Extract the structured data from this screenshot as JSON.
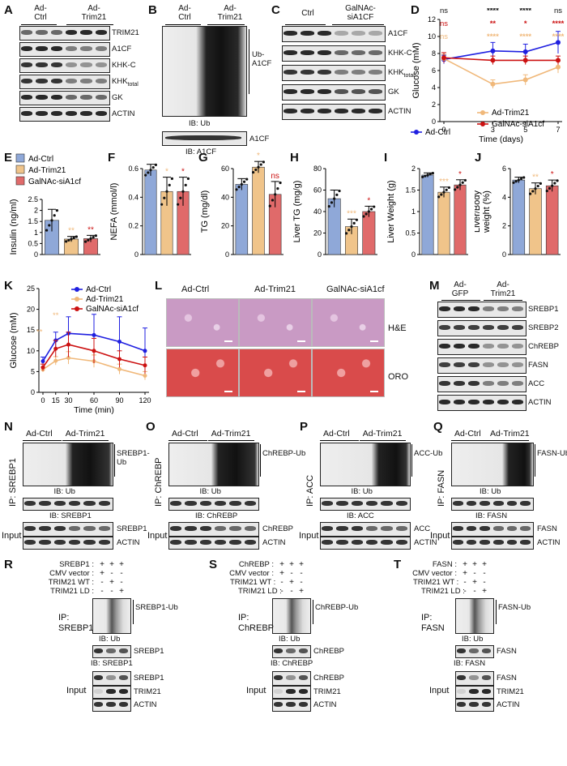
{
  "panels": {
    "A": {
      "letter": "A",
      "groups": [
        "Ad-\nCtrl",
        "Ad-\nTrim21"
      ],
      "rows": [
        "TRIM21",
        "A1CF",
        "KHK-C",
        "KHK",
        "GK",
        "ACTIN"
      ],
      "khk_sub": "total"
    },
    "B": {
      "letter": "B",
      "groups": [
        "Ad-\nCtrl",
        "Ad-\nTrim21"
      ],
      "smear_label": "Ub-\nA1CF",
      "ib1": "IB: Ub",
      "row2": "A1CF",
      "ib2": "IB: A1CF"
    },
    "C": {
      "letter": "C",
      "groups": [
        "Ctrl",
        "GalNAc-\nsiA1CF"
      ],
      "rows": [
        "A1CF",
        "KHK-C",
        "KHK",
        "GK",
        "ACTIN"
      ],
      "khk_sub": "total"
    },
    "D": {
      "letter": "D"
    },
    "E": {
      "letter": "E"
    },
    "F": {
      "letter": "F"
    },
    "G": {
      "letter": "G"
    },
    "H": {
      "letter": "H"
    },
    "I": {
      "letter": "I"
    },
    "J": {
      "letter": "J"
    },
    "K": {
      "letter": "K"
    },
    "L": {
      "letter": "L",
      "cols": [
        "Ad-Ctrl",
        "Ad-Trim21",
        "GalNAc-siA1cf"
      ],
      "rows": [
        "H&E",
        "ORO"
      ],
      "he_color": "#c99ac4",
      "oro_color": "#d94b4b"
    },
    "M": {
      "letter": "M",
      "groups": [
        "Ad-\nGFP",
        "Ad-\nTrim21"
      ],
      "rows": [
        "SREBP1",
        "SREBP2",
        "ChREBP",
        "FASN",
        "ACC",
        "ACTIN"
      ]
    },
    "N": {
      "letter": "N",
      "groups": [
        "Ad-Ctrl",
        "Ad-Trim21"
      ],
      "ip": "IP: SREBP1",
      "smear": "SREBP1-\nUb",
      "ib1": "IB: Ub",
      "ib2": "IB: SREBP1",
      "input": "Input",
      "in1": "SREBP1",
      "in2": "ACTIN"
    },
    "O": {
      "letter": "O",
      "groups": [
        "Ad-Ctrl",
        "Ad-Trim21"
      ],
      "ip": "IP: ChREBP",
      "smear": "ChREBP-Ub",
      "ib1": "IB: Ub",
      "ib2": "IB: ChREBP",
      "input": "Input",
      "in1": "ChREBP",
      "in2": "ACTIN"
    },
    "P": {
      "letter": "P",
      "groups": [
        "Ad-Ctrl",
        "Ad-Trim21"
      ],
      "ip": "IP: ACC",
      "smear": "ACC-Ub",
      "ib1": "IB: Ub",
      "ib2": "IB: ACC",
      "input": "Input",
      "in1": "ACC",
      "in2": "ACTIN"
    },
    "Q": {
      "letter": "Q",
      "groups": [
        "Ad-Ctrl",
        "Ad-Trim21"
      ],
      "ip": "IP: FASN",
      "smear": "FASN-Ub",
      "ib1": "IB: Ub",
      "ib2": "IB: FASN",
      "input": "Input",
      "in1": "FASN",
      "in2": "ACTIN"
    },
    "R": {
      "letter": "R",
      "conds": [
        "SREBP1 :",
        "CMV vector :",
        "TRIM21 WT :",
        "TRIM21 LD :"
      ],
      "signs": [
        [
          "+",
          "+",
          "+"
        ],
        [
          "+",
          "-",
          "-"
        ],
        [
          "-",
          "+",
          "-"
        ],
        [
          "-",
          "-",
          "+"
        ]
      ],
      "ip": "IP:\nSREBP1",
      "smear": "SREBP1-Ub",
      "ib1": "IB: Ub",
      "r2": "SREBP1",
      "ib2": "IB: SREBP1",
      "input": "Input",
      "in1": "SREBP1",
      "in2": "TRIM21",
      "in3": "ACTIN"
    },
    "S": {
      "letter": "S",
      "conds": [
        "ChREBP :",
        "CMV vector :",
        "TRIM21 WT :",
        "TRIM21 LD :"
      ],
      "signs": [
        [
          "+",
          "+",
          "+"
        ],
        [
          "+",
          "-",
          "-"
        ],
        [
          "-",
          "+",
          "-"
        ],
        [
          "-",
          "-",
          "+"
        ]
      ],
      "ip": "IP:\nChREBP",
      "smear": "ChREBP-Ub",
      "ib1": "IB: Ub",
      "r2": "ChREBP",
      "ib2": "IB: ChREBP",
      "input": "Input",
      "in1": "ChREBP",
      "in2": "TRIM21",
      "in3": "ACTIN"
    },
    "T": {
      "letter": "T",
      "conds": [
        "FASN :",
        "CMV vector :",
        "TRIM21 WT :",
        "TRIM21 LD :"
      ],
      "signs": [
        [
          "+",
          "+",
          "+"
        ],
        [
          "+",
          "-",
          "-"
        ],
        [
          "-",
          "+",
          "-"
        ],
        [
          "-",
          "-",
          "+"
        ]
      ],
      "ip": "IP:\nFASN",
      "smear": "FASN-Ub",
      "ib1": "IB: Ub",
      "r2": "FASN",
      "ib2": "IB: FASN",
      "input": "Input",
      "in1": "FASN",
      "in2": "TRIM21",
      "in3": "ACTIN"
    }
  },
  "colors": {
    "ctrl": "#8fa8d8",
    "trim21": "#f0c48a",
    "sia1cf": "#e06a6a",
    "blue": "#1f1fe0",
    "orange": "#f0b87a",
    "red": "#cc1111"
  },
  "chart_data": [
    {
      "panel": "D",
      "type": "line",
      "xlabel": "Time (days)",
      "ylabel": "Glucose (mM)",
      "x": [
        0,
        3,
        5,
        7
      ],
      "ylim": [
        0,
        12
      ],
      "yticks": [
        0,
        2,
        4,
        6,
        8,
        10,
        12
      ],
      "series": [
        {
          "name": "Ad-Ctrl",
          "values": [
            7.3,
            8.3,
            8.2,
            9.3
          ],
          "err": [
            0.5,
            1.0,
            0.9,
            1.3
          ]
        },
        {
          "name": "Ad-Trim21",
          "values": [
            7.4,
            4.4,
            4.9,
            6.4
          ],
          "err": [
            0.5,
            0.5,
            0.6,
            0.7
          ]
        },
        {
          "name": "GalNAc-siA1cf",
          "values": [
            7.5,
            7.2,
            7.2,
            7.2
          ],
          "err": [
            0.6,
            0.5,
            0.5,
            0.5
          ]
        }
      ],
      "annotations": [
        [
          "ns",
          "****",
          "****",
          "ns"
        ],
        [
          "ns",
          "**",
          "*",
          "****"
        ],
        [
          "ns",
          "****",
          "****",
          "****"
        ]
      ]
    },
    {
      "panel": "E",
      "type": "bar",
      "ylabel": "Insulin (ng/ml)",
      "ylim": [
        0,
        2.5
      ],
      "yticks": [
        0,
        0.5,
        1.0,
        1.5,
        2.0,
        2.5
      ],
      "legend": [
        "Ad-Ctrl",
        "Ad-Trim21",
        "GalNAc-siA1cf"
      ],
      "values": [
        1.55,
        0.7,
        0.72
      ],
      "err": [
        0.5,
        0.12,
        0.15
      ],
      "sig": [
        "",
        "**",
        "**"
      ]
    },
    {
      "panel": "F",
      "type": "bar",
      "ylabel": "NEFA (mmol/l)",
      "ylim": [
        0,
        0.6
      ],
      "yticks": [
        0,
        0.2,
        0.4,
        0.6
      ],
      "values": [
        0.59,
        0.44,
        0.44
      ],
      "err": [
        0.04,
        0.1,
        0.1
      ],
      "sig": [
        "",
        "*",
        "*"
      ]
    },
    {
      "panel": "G",
      "type": "bar",
      "ylabel": "TG (mg/dl)",
      "ylim": [
        0,
        60
      ],
      "yticks": [
        0,
        20,
        40,
        60
      ],
      "values": [
        49,
        61,
        42
      ],
      "err": [
        4,
        4,
        9
      ],
      "sig": [
        "",
        "*",
        "ns"
      ]
    },
    {
      "panel": "H",
      "type": "bar",
      "ylabel": "Liver TG (mg/g)",
      "ylim": [
        0,
        80
      ],
      "yticks": [
        0,
        20,
        40,
        60,
        80
      ],
      "values": [
        52,
        26,
        40
      ],
      "err": [
        8,
        7,
        5
      ],
      "sig": [
        "",
        "***",
        "*"
      ]
    },
    {
      "panel": "I",
      "type": "bar",
      "ylabel": "Liver Weight (g)",
      "ylim": [
        0,
        2.0
      ],
      "yticks": [
        0,
        0.5,
        1.0,
        1.5,
        2.0
      ],
      "values": [
        1.85,
        1.45,
        1.62
      ],
      "err": [
        0.05,
        0.12,
        0.12
      ],
      "sig": [
        "",
        "***",
        "*"
      ]
    },
    {
      "panel": "J",
      "type": "bar",
      "ylabel": "Liver/Body\nweight (%)",
      "ylim": [
        0,
        6
      ],
      "yticks": [
        0,
        2,
        4,
        6
      ],
      "values": [
        5.2,
        4.6,
        4.8
      ],
      "err": [
        0.2,
        0.4,
        0.4
      ],
      "sig": [
        "",
        "**",
        "*"
      ]
    },
    {
      "panel": "K",
      "type": "line",
      "xlabel": "Time (min)",
      "ylabel": "Glucose (mM)",
      "x": [
        0,
        15,
        30,
        60,
        90,
        120
      ],
      "ylim": [
        0,
        25
      ],
      "yticks": [
        0,
        5,
        10,
        15,
        20,
        25
      ],
      "series": [
        {
          "name": "Ad-Ctrl",
          "values": [
            7.5,
            12.5,
            14.2,
            13.8,
            12.2,
            10.0
          ],
          "err": [
            1.0,
            2.0,
            4.0,
            5.0,
            6.0,
            5.5
          ]
        },
        {
          "name": "Ad-Trim21",
          "values": [
            5.5,
            7.6,
            8.3,
            7.5,
            5.6,
            4.0
          ],
          "err": [
            0.6,
            1.0,
            1.5,
            1.5,
            1.2,
            1.0
          ]
        },
        {
          "name": "GalNAc-siA1cf",
          "values": [
            6.0,
            10.5,
            11.5,
            10.0,
            8.0,
            6.5
          ],
          "err": [
            0.8,
            2.0,
            3.0,
            3.0,
            2.0,
            2.0
          ]
        }
      ],
      "annotations": [
        "**",
        "**"
      ]
    }
  ]
}
